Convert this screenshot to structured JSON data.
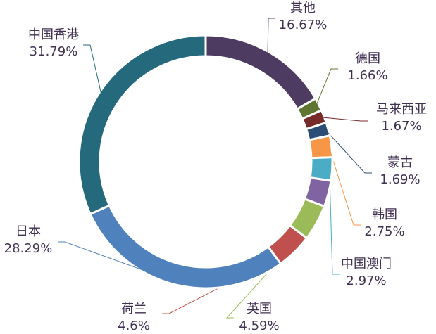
{
  "chart_data": {
    "type": "donut",
    "categories": [
      "其他",
      "德国",
      "马来西亚",
      "蒙古",
      "韩国",
      "中国澳门",
      null,
      "英国",
      "荷兰",
      "日本",
      "中国香港"
    ],
    "values": [
      16.67,
      1.66,
      1.67,
      1.69,
      2.75,
      2.97,
      3.32,
      4.59,
      4.6,
      28.29,
      31.79
    ],
    "value_labels": [
      "16.67%",
      "1.66%",
      "1.67%",
      "1.69%",
      "2.75%",
      "2.97%",
      null,
      "4.59%",
      "4.6%",
      "28.29%",
      "31.79%"
    ],
    "colors": [
      "#4e3b62",
      "#5f7530",
      "#772c2a",
      "#2c4d75",
      "#f79646",
      "#4bacc6",
      "#8064a2",
      "#9bbb59",
      "#c0504d",
      "#4f81bd",
      "#24697c"
    ]
  }
}
